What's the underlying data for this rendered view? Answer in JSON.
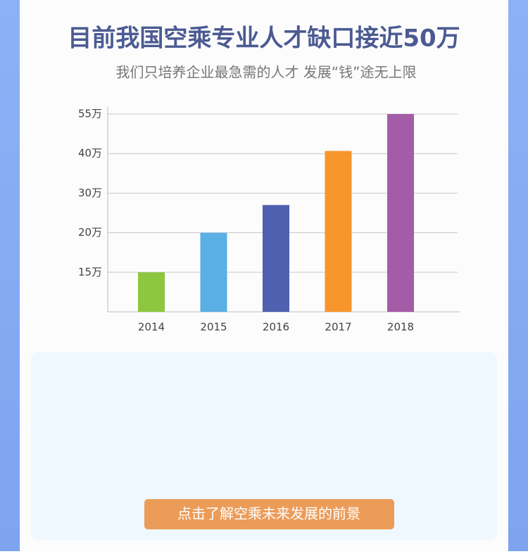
{
  "chart_data": {
    "type": "bar",
    "title": "目前我国空乘专业人才缺口接近50万",
    "subtitle": "我们只培养企业最急需的人才  发展“钱”途无上限",
    "categories": [
      "2014",
      "2015",
      "2016",
      "2017",
      "2018"
    ],
    "values": [
      15,
      20,
      27,
      41,
      55
    ],
    "colors": [
      "#8dc63f",
      "#5aafe4",
      "#5060b0",
      "#f7962c",
      "#a55ca6"
    ],
    "ylim": [
      10,
      55
    ],
    "yticks": [
      {
        "value": 15,
        "label": "15万"
      },
      {
        "value": 20,
        "label": "20万"
      },
      {
        "value": 30,
        "label": "30万"
      },
      {
        "value": 40,
        "label": "40万"
      },
      {
        "value": 55,
        "label": "55万"
      }
    ],
    "grid": true
  },
  "button": "点击了解空乘未来发展的前景"
}
